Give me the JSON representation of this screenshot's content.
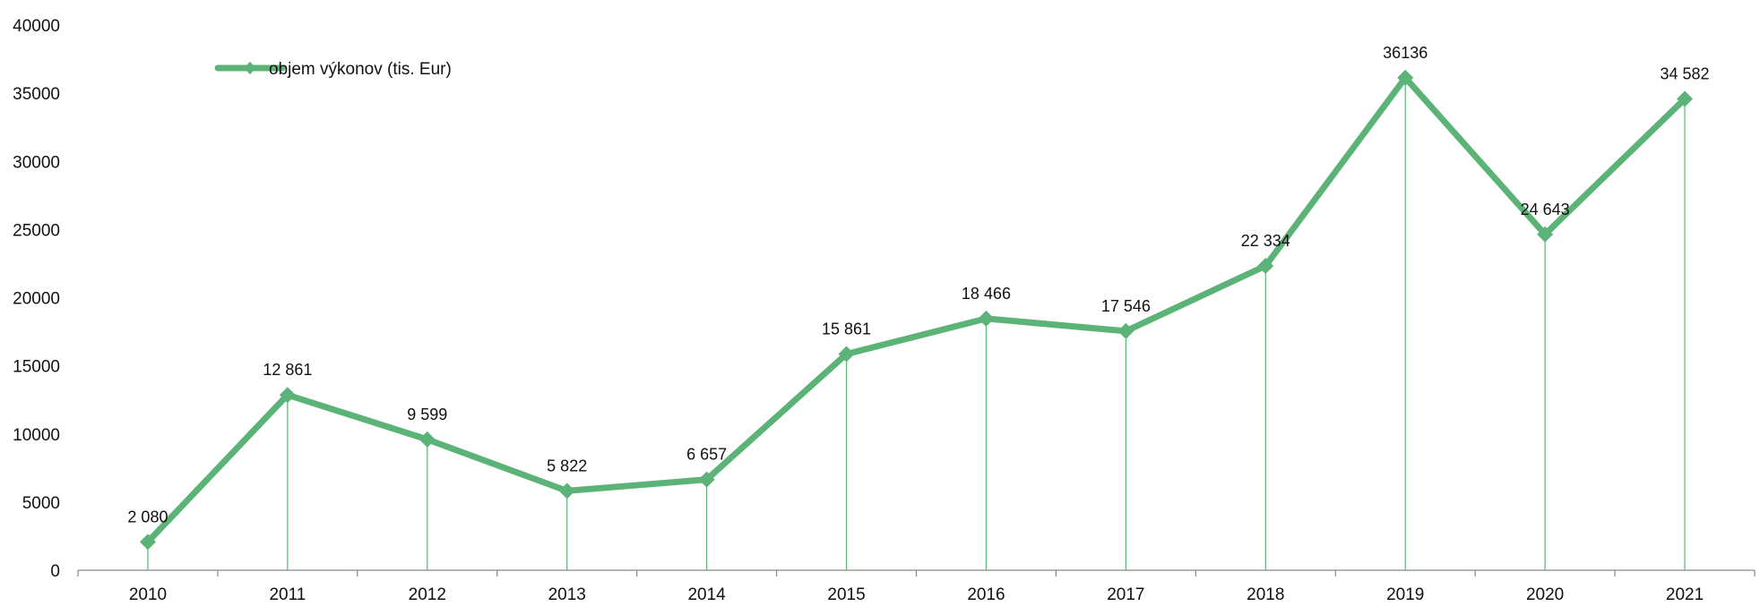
{
  "chart_data": {
    "type": "line",
    "categories": [
      "2010",
      "2011",
      "2012",
      "2013",
      "2014",
      "2015",
      "2016",
      "2017",
      "2018",
      "2019",
      "2020",
      "2021"
    ],
    "series": [
      {
        "name": "objem výkonov (tis. Eur)",
        "values": [
          2080,
          12861,
          9599,
          5822,
          6657,
          15861,
          18466,
          17546,
          22334,
          36136,
          24643,
          34582
        ],
        "data_labels": [
          "2 080",
          "12 861",
          "9 599",
          "5 822",
          "6 657",
          "15 861",
          "18 466",
          "17 546",
          "22 334",
          "36136",
          "24 643",
          "34 582"
        ]
      }
    ],
    "y_ticks": [
      "0",
      "5000",
      "10000",
      "15000",
      "20000",
      "25000",
      "30000",
      "35000",
      "40000"
    ],
    "ylim": [
      0,
      40000
    ],
    "grid": false,
    "drop_lines": true,
    "legend_position": "top-left",
    "colors": {
      "series": "#5cb377",
      "axis": "#888888",
      "text": "#111111"
    }
  }
}
